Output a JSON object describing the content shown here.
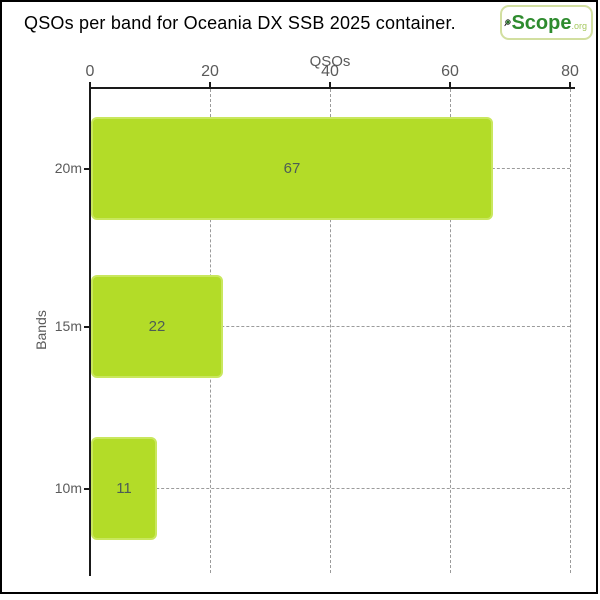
{
  "title": "QSOs per band for Oceania DX SSB 2025 container.",
  "logo": {
    "brand": "Scope",
    "suffix": ".org",
    "icon": "magnifier-globe",
    "border_color": "#d2dfa0",
    "brand_color": "#2e8b2e",
    "suffix_color": "#a5c85f"
  },
  "chart_data": {
    "type": "bar",
    "orientation": "horizontal",
    "title": "QSOs per band for Oceania DX SSB 2025 container.",
    "xlabel": "QSOs",
    "ylabel": "Bands",
    "categories": [
      "20m",
      "15m",
      "10m"
    ],
    "values": [
      67,
      22,
      11
    ],
    "xlim": [
      0,
      80
    ],
    "xticks": [
      0,
      20,
      40,
      60,
      80
    ],
    "grid": true,
    "legend": false,
    "gridline_style": "dashed",
    "bar_color": "#b3dc28",
    "bar_edge_color": "#c9e75e",
    "value_label_color": "#4d5d55",
    "axis_color": "#1a1a1a",
    "tick_label_color": "#5a5a5a",
    "gridline_color": "#9b9b9b"
  }
}
